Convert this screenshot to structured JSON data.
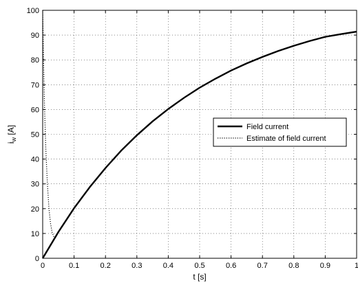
{
  "chart_data": {
    "type": "line",
    "title": "",
    "xlabel": "t [s]",
    "ylabel_main": "i",
    "ylabel_sub": "w",
    "ylabel_unit": " [A]",
    "xlim": [
      0,
      1
    ],
    "ylim": [
      0,
      100
    ],
    "grid": true,
    "legend_position": "center-right",
    "x_ticks": [
      "0",
      "0.1",
      "0.2",
      "0.3",
      "0.4",
      "0.5",
      "0.6",
      "0.7",
      "0.8",
      "0.9",
      "1"
    ],
    "y_ticks": [
      "0",
      "10",
      "20",
      "30",
      "40",
      "50",
      "60",
      "70",
      "80",
      "90",
      "100"
    ],
    "series": [
      {
        "name": "Field current",
        "style": "solid",
        "x": [
          0,
          0.05,
          0.1,
          0.15,
          0.2,
          0.25,
          0.3,
          0.35,
          0.4,
          0.45,
          0.5,
          0.55,
          0.6,
          0.65,
          0.7,
          0.75,
          0.8,
          0.85,
          0.9,
          0.95,
          1.0
        ],
        "y": [
          0,
          10.6,
          20.2,
          28.7,
          36.4,
          43.4,
          49.6,
          55.2,
          60.2,
          64.7,
          68.8,
          72.4,
          75.7,
          78.6,
          81.2,
          83.6,
          85.7,
          87.6,
          89.3,
          90.4,
          91.4
        ]
      },
      {
        "name": "Estimate of field current",
        "style": "dotted",
        "x": [
          0,
          0.003,
          0.006,
          0.01,
          0.015,
          0.02,
          0.025,
          0.03,
          0.035,
          0.04
        ],
        "y": [
          100,
          78,
          60,
          44,
          30,
          20,
          14,
          10.5,
          8.8,
          8.2
        ]
      }
    ]
  }
}
